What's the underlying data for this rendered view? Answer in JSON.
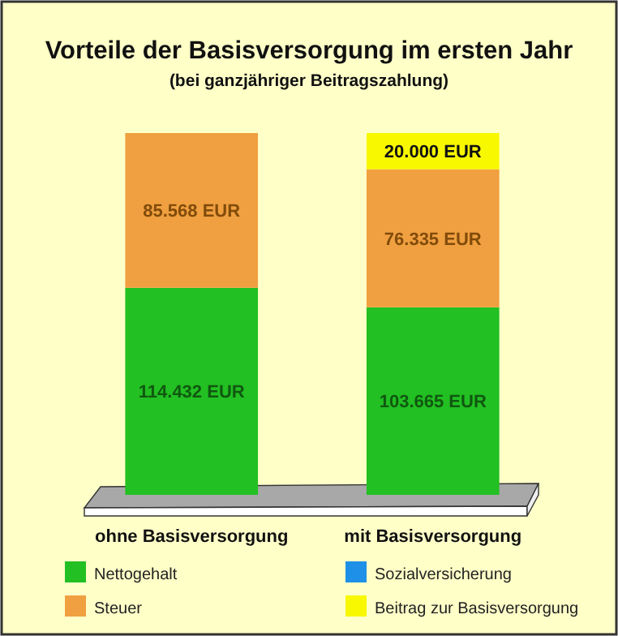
{
  "chart_data": {
    "type": "bar",
    "title": "Vorteile der Basisversorgung im ersten Jahr",
    "subtitle": "(bei ganzjähriger Beitragszahlung)",
    "categories": [
      "ohne Basisversorgung",
      "mit Basisversorgung"
    ],
    "stacked": true,
    "legend": "bottom",
    "series": [
      {
        "name": "Nettogehalt",
        "color": "#22c022",
        "values": [
          114432,
          103665
        ],
        "value_labels": [
          "114.432 EUR",
          "103.665 EUR"
        ]
      },
      {
        "name": "Sozialversicherung",
        "color": "#1e90e8",
        "values": [
          null,
          null
        ],
        "value_labels": [
          null,
          null
        ]
      },
      {
        "name": "Steuer",
        "color": "#f0a040",
        "values": [
          85568,
          76335
        ],
        "value_labels": [
          "85.568 EUR",
          "76.335 EUR"
        ]
      },
      {
        "name": "Beitrag zur Basisversorgung",
        "color": "#f8f800",
        "values": [
          null,
          20000
        ],
        "value_labels": [
          null,
          "20.000 EUR"
        ]
      }
    ]
  }
}
